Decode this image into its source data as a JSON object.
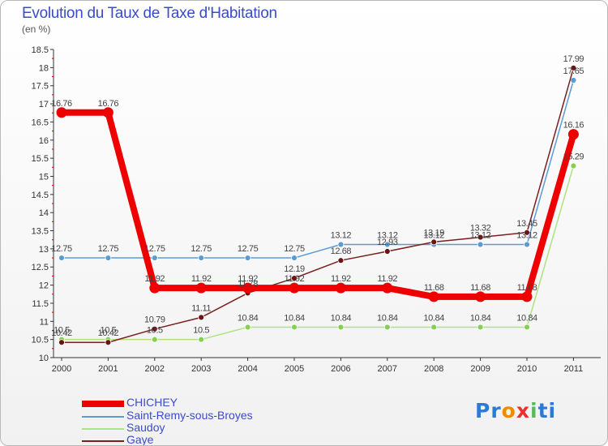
{
  "chart_data": {
    "type": "line",
    "title": "Evolution du Taux de Taxe d'Habitation",
    "subtitle": "(en %)",
    "xlabel": "",
    "ylabel": "",
    "ylim": [
      10,
      18.5
    ],
    "yticks": [
      "10",
      "10.5",
      "11",
      "11.5",
      "12",
      "12.5",
      "13",
      "13.5",
      "14",
      "14.5",
      "15",
      "15.5",
      "16",
      "16.5",
      "17",
      "17.5",
      "18",
      "18.5"
    ],
    "categories": [
      "2000",
      "2001",
      "2002",
      "2003",
      "2004",
      "2005",
      "2006",
      "2007",
      "2008",
      "2009",
      "2010",
      "2011"
    ],
    "grid": false,
    "legend_position": "bottom-left",
    "series": [
      {
        "name": "CHICHEY",
        "color": "#ee0000",
        "values": [
          16.76,
          16.76,
          11.92,
          11.92,
          11.92,
          11.92,
          11.92,
          11.92,
          11.68,
          11.68,
          11.68,
          16.16
        ],
        "labels": [
          "16.76",
          "16.76",
          "11.92",
          "11.92",
          "11.92",
          "11.92",
          "11.92",
          "11.92",
          "11.68",
          "11.68",
          "11.68",
          "16.16"
        ]
      },
      {
        "name": "Saint-Remy-sous-Broyes",
        "color": "#5b9bd5",
        "values": [
          12.75,
          12.75,
          12.75,
          12.75,
          12.75,
          12.75,
          13.12,
          13.12,
          13.12,
          13.12,
          13.12,
          17.65
        ],
        "labels": [
          "12.75",
          "12.75",
          "12.75",
          "12.75",
          "12.75",
          "12.75",
          "13.12",
          "13.12",
          "13.12",
          "13.12",
          "13.12",
          "17.65"
        ]
      },
      {
        "name": "Saudoy",
        "color": "#99dd66",
        "values": [
          10.5,
          10.5,
          10.5,
          10.5,
          10.84,
          10.84,
          10.84,
          10.84,
          10.84,
          10.84,
          10.84,
          15.29
        ],
        "labels": [
          "10.5",
          "10.5",
          "10.5",
          "10.5",
          "10.84",
          "10.84",
          "10.84",
          "10.84",
          "10.84",
          "10.84",
          "10.84",
          "15.29"
        ]
      },
      {
        "name": "Gaye",
        "color": "#7a1f1f",
        "values": [
          10.42,
          10.42,
          10.79,
          11.11,
          11.78,
          12.19,
          12.68,
          12.93,
          13.19,
          13.32,
          13.45,
          17.99
        ],
        "labels": [
          "10.42",
          "10.42",
          "10.79",
          "11.11",
          "11.78",
          "12.19",
          "12.68",
          "12.93",
          "13.19",
          "13.32",
          "13.45",
          "17.99"
        ]
      }
    ]
  },
  "brand": {
    "text": "Proxiti",
    "letters": [
      "P",
      "r",
      "o",
      "x",
      "i",
      "t",
      "i"
    ],
    "colors": [
      "#2b7bd6",
      "#2b7bd6",
      "#f08a00",
      "#e8332a",
      "#5cb85c",
      "#2b7bd6",
      "#2b7bd6"
    ]
  }
}
